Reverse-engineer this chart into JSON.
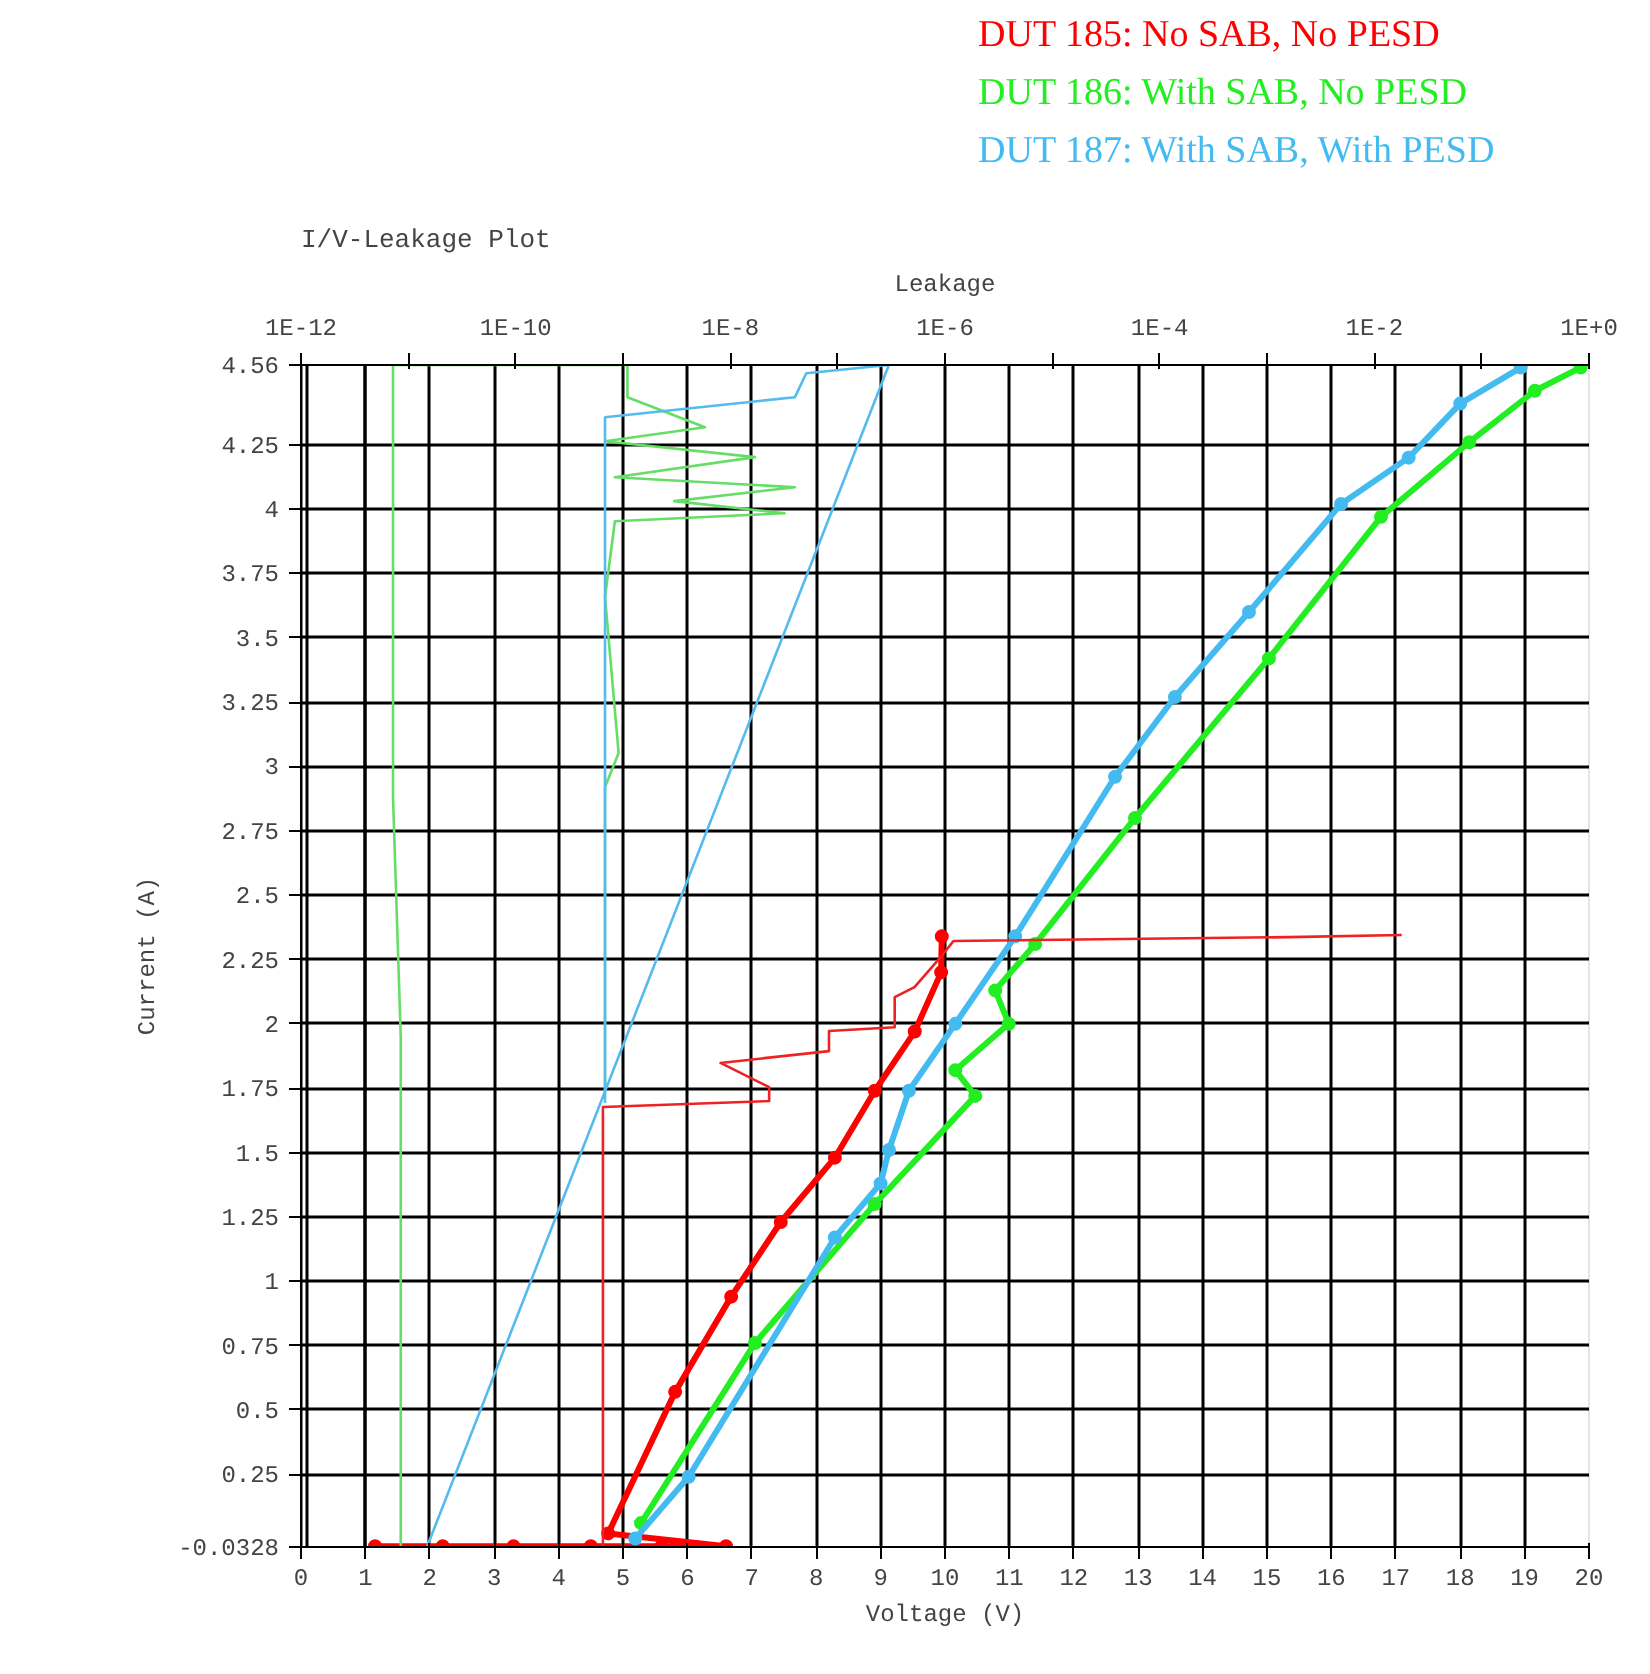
{
  "chart_data": {
    "type": "line",
    "title": "I/V-Leakage Plot",
    "xlabel": "Voltage (V)",
    "x2label": "Leakage",
    "ylabel": "Current (A)",
    "xlim": [
      0,
      20
    ],
    "xticks": [
      0,
      1,
      2,
      3,
      4,
      5,
      6,
      7,
      8,
      9,
      10,
      11,
      12,
      13,
      14,
      15,
      16,
      17,
      18,
      19,
      20
    ],
    "x2lim": [
      1e-12,
      1
    ],
    "x2ticks": [
      {
        "value": 1e-12,
        "label": "1E-12"
      },
      {
        "value": 1e-11,
        "label": null
      },
      {
        "value": 1e-10,
        "label": "1E-10"
      },
      {
        "value": 1e-09,
        "label": null
      },
      {
        "value": 1e-08,
        "label": "1E-8"
      },
      {
        "value": 1e-07,
        "label": null
      },
      {
        "value": 1e-06,
        "label": "1E-6"
      },
      {
        "value": 1e-05,
        "label": null
      },
      {
        "value": 0.0001,
        "label": "1E-4"
      },
      {
        "value": 0.001,
        "label": null
      },
      {
        "value": 0.01,
        "label": "1E-2"
      },
      {
        "value": 0.1,
        "label": null
      },
      {
        "value": 1,
        "label": "1E+0"
      }
    ],
    "log": "x2",
    "ylim": [
      -0.0328,
      4.56
    ],
    "yticks": [
      {
        "value": -0.0328,
        "label": "-0.0328"
      },
      0.25,
      0.5,
      0.75,
      1,
      1.25,
      1.5,
      1.75,
      2,
      2.25,
      2.5,
      2.75,
      3,
      3.25,
      3.5,
      3.75,
      4,
      4.25,
      4.56
    ],
    "grid": true,
    "legend": "top right",
    "series": [
      {
        "name": "DUT 185: No SAB, No PESD",
        "color": "#ff0000",
        "marker": "circle",
        "x": [
          1.15,
          2.2,
          3.3,
          4.5,
          5.6,
          6.6,
          4.77,
          5.81,
          6.68,
          7.45,
          8.29,
          8.91,
          9.53,
          9.94,
          9.95
        ],
        "values": [
          -0.03,
          -0.03,
          -0.03,
          -0.03,
          -0.03,
          -0.03,
          0.02,
          0.57,
          0.94,
          1.23,
          1.48,
          1.74,
          1.97,
          2.2,
          2.34
        ]
      },
      {
        "name": "DUT 186: With SAB, No PESD",
        "color": "#22ee22",
        "marker": "circle",
        "x": [
          5.28,
          7.05,
          8.91,
          10.47,
          10.16,
          10.99,
          10.78,
          11.4,
          12.95,
          15.03,
          16.77,
          18.14,
          19.16,
          19.87
        ],
        "values": [
          0.06,
          0.76,
          1.3,
          1.72,
          1.82,
          2.0,
          2.13,
          2.31,
          2.8,
          3.42,
          3.97,
          4.26,
          4.46,
          4.55
        ]
      },
      {
        "name": "DUT 187: With SAB, With PESD",
        "color": "#44bbf0",
        "marker": "circle",
        "x": [
          5.19,
          6.02,
          8.29,
          9.0,
          9.13,
          9.44,
          10.16,
          11.09,
          12.64,
          13.57,
          14.72,
          16.15,
          17.2,
          18.0,
          18.94
        ],
        "values": [
          0.0,
          0.24,
          1.17,
          1.38,
          1.51,
          1.74,
          2.0,
          2.34,
          2.96,
          3.27,
          3.6,
          4.02,
          4.2,
          4.41,
          4.55
        ]
      },
      {
        "axis": "x2",
        "color": "#ee2222",
        "marker": "none",
        "x": [
          6.5e-10,
          6.5e-10,
          2.3e-08,
          2.3e-08,
          8.1e-09,
          8.3e-08,
          8.3e-08,
          3.4e-07,
          3.4e-07,
          5.2e-07,
          9.1e-07,
          1.2e-06,
          0.0016,
          0.018
        ],
        "values": [
          -0.03,
          1.677,
          1.7,
          1.754,
          1.848,
          1.894,
          1.972,
          1.987,
          2.104,
          2.143,
          2.259,
          2.322,
          2.337,
          2.345
        ]
      },
      {
        "axis": "x2",
        "color": "#66dd66",
        "marker": "none",
        "x": [
          8.5e-12,
          8.5e-12,
          7.2e-12,
          7.2e-12,
          1.1e-09,
          1.1e-09,
          5.8e-09,
          6.8e-10,
          1.7e-08,
          8.4e-10,
          4e-08,
          3e-09,
          3.2e-08,
          8.4e-10,
          6.8e-10,
          9.1e-10,
          6.8e-10,
          6.8e-10
        ],
        "values": [
          -0.03,
          1.948,
          2.881,
          4.56,
          4.56,
          4.435,
          4.318,
          4.264,
          4.202,
          4.124,
          4.085,
          4.031,
          3.984,
          3.953,
          3.658,
          3.052,
          2.92,
          1.739
        ]
      },
      {
        "axis": "x2",
        "color": "#55bbee",
        "marker": "none",
        "x": [
          6.8e-10,
          6.8e-10,
          4e-08,
          5.1e-08,
          3e-07,
          1.5e-11
        ],
        "values": [
          1.692,
          4.357,
          4.435,
          4.528,
          4.56,
          -0.03
        ]
      }
    ]
  }
}
